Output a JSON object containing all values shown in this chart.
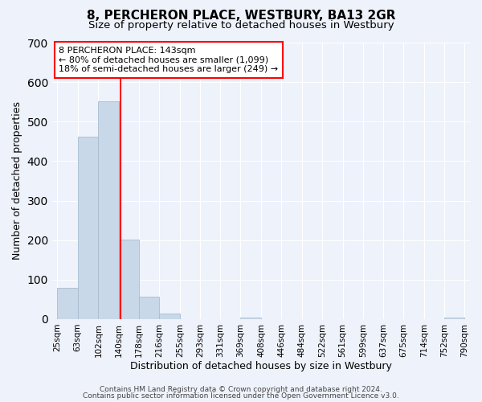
{
  "title": "8, PERCHERON PLACE, WESTBURY, BA13 2GR",
  "subtitle": "Size of property relative to detached houses in Westbury",
  "xlabel": "Distribution of detached houses by size in Westbury",
  "ylabel": "Number of detached properties",
  "bar_edges": [
    25,
    63,
    102,
    140,
    178,
    216,
    255,
    293,
    331,
    369,
    408,
    446,
    484,
    522,
    561,
    599,
    637,
    675,
    714,
    752,
    790
  ],
  "bar_heights": [
    80,
    462,
    551,
    202,
    57,
    15,
    0,
    0,
    0,
    5,
    0,
    0,
    0,
    0,
    0,
    0,
    0,
    0,
    0,
    5
  ],
  "bar_color": "#c8d8e8",
  "bar_edgecolor": "#a8bcd0",
  "vline_x": 143,
  "vline_color": "red",
  "annotation_line1": "8 PERCHERON PLACE: 143sqm",
  "annotation_line2": "← 80% of detached houses are smaller (1,099)",
  "annotation_line3": "18% of semi-detached houses are larger (249) →",
  "annotation_box_edgecolor": "red",
  "annotation_box_facecolor": "white",
  "ylim": [
    0,
    700
  ],
  "yticks": [
    0,
    100,
    200,
    300,
    400,
    500,
    600,
    700
  ],
  "tick_labels": [
    "25sqm",
    "63sqm",
    "102sqm",
    "140sqm",
    "178sqm",
    "216sqm",
    "255sqm",
    "293sqm",
    "331sqm",
    "369sqm",
    "408sqm",
    "446sqm",
    "484sqm",
    "522sqm",
    "561sqm",
    "599sqm",
    "637sqm",
    "675sqm",
    "714sqm",
    "752sqm",
    "790sqm"
  ],
  "footer_line1": "Contains HM Land Registry data © Crown copyright and database right 2024.",
  "footer_line2": "Contains public sector information licensed under the Open Government Licence v3.0.",
  "bg_color": "#eef2fb",
  "grid_color": "white",
  "title_fontsize": 11,
  "subtitle_fontsize": 9.5,
  "label_fontsize": 9,
  "tick_fontsize": 7.5,
  "footer_fontsize": 6.5
}
